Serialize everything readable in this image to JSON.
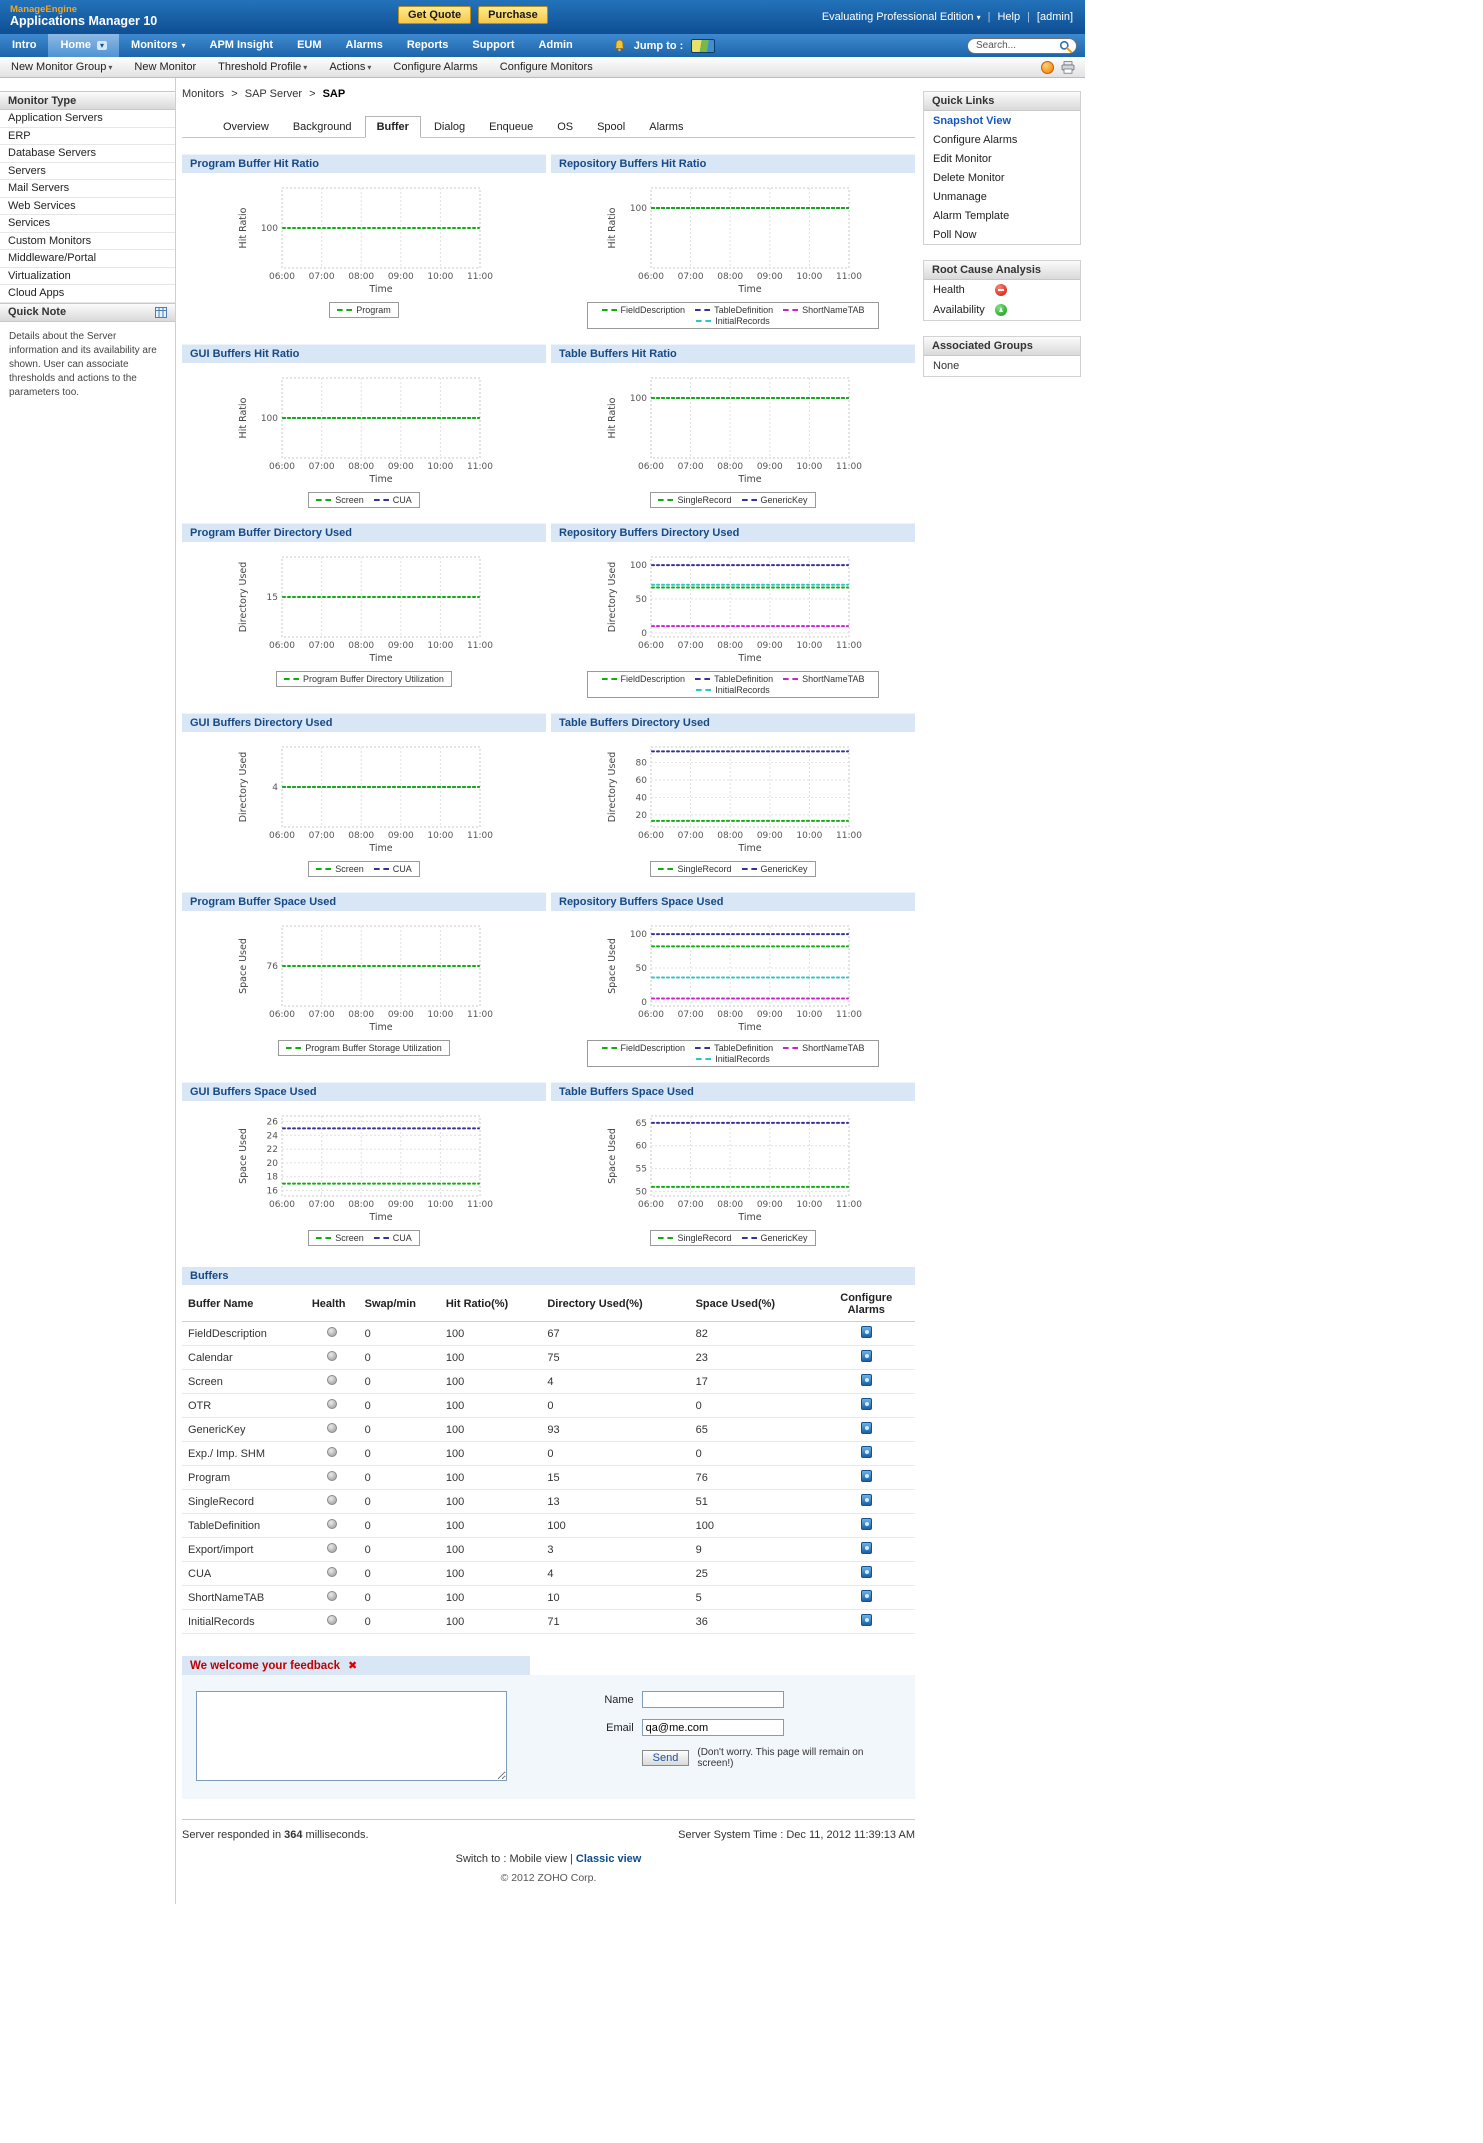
{
  "glyphs": {
    "caret": "▾",
    "close": "✖",
    "separator": ">",
    "pipe": "|"
  },
  "topbar": {
    "brand_top": "ManageEngine",
    "brand_bottom": "Applications Manager 10",
    "get_quote_label": "Get Quote",
    "purchase_label": "Purchase",
    "edition_label": "Evaluating Professional Edition",
    "help_label": "Help",
    "user_label": "[admin]"
  },
  "nav": {
    "items": [
      "Intro",
      "Home",
      "Monitors",
      "APM Insight",
      "EUM",
      "Alarms",
      "Reports",
      "Support",
      "Admin"
    ],
    "jump_to_label": "Jump to :",
    "search_value": "Search..."
  },
  "subnav": {
    "items": [
      "New Monitor Group",
      "New Monitor",
      "Threshold Profile",
      "Actions",
      "Configure Alarms",
      "Configure Monitors"
    ]
  },
  "sidebar": {
    "title": "Monitor Type",
    "items": [
      "Application Servers",
      "ERP",
      "Database Servers",
      "Servers",
      "Mail Servers",
      "Web Services",
      "Services",
      "Custom Monitors",
      "Middleware/Portal",
      "Virtualization",
      "Cloud Apps"
    ],
    "quick_note_title": "Quick Note",
    "quick_note_text": "Details about the Server information and its availability are shown. User can associate thresholds and actions to the parameters too."
  },
  "breadcrumb": {
    "items": [
      "Monitors",
      "SAP Server"
    ],
    "current": "SAP"
  },
  "page_tabs": [
    "Overview",
    "Background",
    "Buffer",
    "Dialog",
    "Enqueue",
    "OS",
    "Spool",
    "Alarms"
  ],
  "quick_links": {
    "title": "Quick Links",
    "items": [
      "Snapshot View",
      "Configure Alarms",
      "Edit Monitor",
      "Delete Monitor",
      "Unmanage",
      "Alarm Template",
      "Poll Now"
    ]
  },
  "root_cause": {
    "title": "Root Cause Analysis",
    "health_label": "Health",
    "availability_label": "Availability"
  },
  "associated_groups": {
    "title": "Associated Groups",
    "value": "None"
  },
  "chart_data": [
    {
      "type": "line",
      "title": "Program Buffer Hit Ratio",
      "ylabel": "Hit Ratio",
      "xlabel": "Time",
      "x_ticks": [
        "06:00",
        "07:00",
        "08:00",
        "09:00",
        "10:00",
        "11:00"
      ],
      "y_ticks": [
        100
      ],
      "ylim": [
        50,
        150
      ],
      "series": [
        {
          "name": "Program",
          "color": "#0fae0f",
          "value": 100
        }
      ]
    },
    {
      "type": "line",
      "title": "Repository Buffers Hit Ratio",
      "ylabel": "Hit Ratio",
      "xlabel": "Time",
      "x_ticks": [
        "06:00",
        "07:00",
        "08:00",
        "09:00",
        "10:00",
        "11:00"
      ],
      "y_ticks": [
        100
      ],
      "ylim": [
        40,
        120
      ],
      "series": [
        {
          "name": "FieldDescription",
          "color": "#0fae0f",
          "value": 100
        },
        {
          "name": "TableDefinition",
          "color": "#333399",
          "value": 100
        },
        {
          "name": "ShortNameTAB",
          "color": "#cc22cc",
          "value": 100
        },
        {
          "name": "InitialRecords",
          "color": "#2fc4cc",
          "value": 100
        }
      ]
    },
    {
      "type": "line",
      "title": "GUI Buffers Hit Ratio",
      "ylabel": "Hit Ratio",
      "xlabel": "Time",
      "x_ticks": [
        "06:00",
        "07:00",
        "08:00",
        "09:00",
        "10:00",
        "11:00"
      ],
      "y_ticks": [
        100
      ],
      "ylim": [
        50,
        150
      ],
      "series": [
        {
          "name": "Screen",
          "color": "#0fae0f",
          "value": 100
        },
        {
          "name": "CUA",
          "color": "#333399",
          "value": 100
        }
      ]
    },
    {
      "type": "line",
      "title": "Table Buffers Hit Ratio",
      "ylabel": "Hit Ratio",
      "xlabel": "Time",
      "x_ticks": [
        "06:00",
        "07:00",
        "08:00",
        "09:00",
        "10:00",
        "11:00"
      ],
      "y_ticks": [
        100
      ],
      "ylim": [
        40,
        120
      ],
      "series": [
        {
          "name": "SingleRecord",
          "color": "#0fae0f",
          "value": 100
        },
        {
          "name": "GenericKey",
          "color": "#333399",
          "value": 100
        }
      ]
    },
    {
      "type": "line",
      "title": "Program Buffer Directory Used",
      "ylabel": "Directory Used",
      "xlabel": "Time",
      "x_ticks": [
        "06:00",
        "07:00",
        "08:00",
        "09:00",
        "10:00",
        "11:00"
      ],
      "y_ticks": [
        15
      ],
      "ylim": [
        7,
        23
      ],
      "series": [
        {
          "name": "Program Buffer Directory Utilization",
          "color": "#0fae0f",
          "value": 15
        }
      ]
    },
    {
      "type": "line",
      "title": "Repository Buffers Directory Used",
      "ylabel": "Directory Used",
      "xlabel": "Time",
      "x_ticks": [
        "06:00",
        "07:00",
        "08:00",
        "09:00",
        "10:00",
        "11:00"
      ],
      "y_ticks": [
        0,
        50,
        100
      ],
      "ylim": [
        -6,
        112
      ],
      "series": [
        {
          "name": "FieldDescription",
          "color": "#0fae0f",
          "value": 67
        },
        {
          "name": "TableDefinition",
          "color": "#333399",
          "value": 100
        },
        {
          "name": "ShortNameTAB",
          "color": "#cc22cc",
          "value": 10
        },
        {
          "name": "InitialRecords",
          "color": "#2fc4cc",
          "value": 71
        }
      ]
    },
    {
      "type": "line",
      "title": "GUI Buffers Directory Used",
      "ylabel": "Directory Used",
      "xlabel": "Time",
      "x_ticks": [
        "06:00",
        "07:00",
        "08:00",
        "09:00",
        "10:00",
        "11:00"
      ],
      "y_ticks": [
        4
      ],
      "ylim": [
        2,
        6
      ],
      "series": [
        {
          "name": "Screen",
          "color": "#0fae0f",
          "value": 4
        },
        {
          "name": "CUA",
          "color": "#333399",
          "value": 4
        }
      ]
    },
    {
      "type": "line",
      "title": "Table Buffers Directory Used",
      "ylabel": "Directory Used",
      "xlabel": "Time",
      "x_ticks": [
        "06:00",
        "07:00",
        "08:00",
        "09:00",
        "10:00",
        "11:00"
      ],
      "y_ticks": [
        20,
        40,
        60,
        80
      ],
      "ylim": [
        6,
        98
      ],
      "series": [
        {
          "name": "SingleRecord",
          "color": "#0fae0f",
          "value": 13
        },
        {
          "name": "GenericKey",
          "color": "#333399",
          "value": 93
        }
      ]
    },
    {
      "type": "line",
      "title": "Program Buffer Space Used",
      "ylabel": "Space Used",
      "xlabel": "Time",
      "x_ticks": [
        "06:00",
        "07:00",
        "08:00",
        "09:00",
        "10:00",
        "11:00"
      ],
      "y_ticks": [
        76
      ],
      "ylim": [
        56,
        96
      ],
      "series": [
        {
          "name": "Program Buffer Storage Utilization",
          "color": "#0fae0f",
          "value": 76
        }
      ]
    },
    {
      "type": "line",
      "title": "Repository Buffers Space Used",
      "ylabel": "Space Used",
      "xlabel": "Time",
      "x_ticks": [
        "06:00",
        "07:00",
        "08:00",
        "09:00",
        "10:00",
        "11:00"
      ],
      "y_ticks": [
        0,
        50,
        100
      ],
      "ylim": [
        -6,
        112
      ],
      "series": [
        {
          "name": "FieldDescription",
          "color": "#0fae0f",
          "value": 82
        },
        {
          "name": "TableDefinition",
          "color": "#333399",
          "value": 100
        },
        {
          "name": "ShortNameTAB",
          "color": "#cc22cc",
          "value": 5
        },
        {
          "name": "InitialRecords",
          "color": "#2fc4cc",
          "value": 36
        }
      ]
    },
    {
      "type": "line",
      "title": "GUI Buffers Space Used",
      "ylabel": "Space Used",
      "xlabel": "Time",
      "x_ticks": [
        "06:00",
        "07:00",
        "08:00",
        "09:00",
        "10:00",
        "11:00"
      ],
      "y_ticks": [
        16,
        18,
        20,
        22,
        24,
        26
      ],
      "ylim": [
        15.2,
        26.8
      ],
      "series": [
        {
          "name": "Screen",
          "color": "#0fae0f",
          "value": 17
        },
        {
          "name": "CUA",
          "color": "#333399",
          "value": 25
        }
      ]
    },
    {
      "type": "line",
      "title": "Table Buffers Space Used",
      "ylabel": "Space Used",
      "xlabel": "Time",
      "x_ticks": [
        "06:00",
        "07:00",
        "08:00",
        "09:00",
        "10:00",
        "11:00"
      ],
      "y_ticks": [
        50,
        55,
        60,
        65
      ],
      "ylim": [
        49,
        66.5
      ],
      "series": [
        {
          "name": "SingleRecord",
          "color": "#0fae0f",
          "value": 51
        },
        {
          "name": "GenericKey",
          "color": "#333399",
          "value": 65
        }
      ]
    }
  ],
  "buffers_table": {
    "section_title": "Buffers",
    "columns": [
      "Buffer Name",
      "Health",
      "Swap/min",
      "Hit Ratio(%)",
      "Directory Used(%)",
      "Space Used(%)",
      "Configure Alarms"
    ],
    "rows": [
      {
        "name": "FieldDescription",
        "swap": "0",
        "hit": "100",
        "dir": "67",
        "space": "82"
      },
      {
        "name": "Calendar",
        "swap": "0",
        "hit": "100",
        "dir": "75",
        "space": "23"
      },
      {
        "name": "Screen",
        "swap": "0",
        "hit": "100",
        "dir": "4",
        "space": "17"
      },
      {
        "name": "OTR",
        "swap": "0",
        "hit": "100",
        "dir": "0",
        "space": "0"
      },
      {
        "name": "GenericKey",
        "swap": "0",
        "hit": "100",
        "dir": "93",
        "space": "65"
      },
      {
        "name": "Exp./ Imp. SHM",
        "swap": "0",
        "hit": "100",
        "dir": "0",
        "space": "0"
      },
      {
        "name": "Program",
        "swap": "0",
        "hit": "100",
        "dir": "15",
        "space": "76"
      },
      {
        "name": "SingleRecord",
        "swap": "0",
        "hit": "100",
        "dir": "13",
        "space": "51"
      },
      {
        "name": "TableDefinition",
        "swap": "0",
        "hit": "100",
        "dir": "100",
        "space": "100"
      },
      {
        "name": "Export/import",
        "swap": "0",
        "hit": "100",
        "dir": "3",
        "space": "9"
      },
      {
        "name": "CUA",
        "swap": "0",
        "hit": "100",
        "dir": "4",
        "space": "25"
      },
      {
        "name": "ShortNameTAB",
        "swap": "0",
        "hit": "100",
        "dir": "10",
        "space": "5"
      },
      {
        "name": "InitialRecords",
        "swap": "0",
        "hit": "100",
        "dir": "71",
        "space": "36"
      }
    ]
  },
  "feedback": {
    "title": "We welcome your feedback",
    "name_label": "Name",
    "email_label": "Email",
    "email_value": "qa@me.com",
    "send_label": "Send",
    "note": "(Don't worry. This page will remain on screen!)"
  },
  "footer": {
    "responded_prefix": "Server responded in",
    "responded_ms": "364",
    "responded_suffix": "milliseconds.",
    "server_time": "Server System Time : Dec 11, 2012 11:39:13 AM",
    "switch_prefix": "Switch to :",
    "mobile_view": "Mobile view",
    "classic_view": "Classic view",
    "copyright": "© 2012 ZOHO Corp."
  }
}
